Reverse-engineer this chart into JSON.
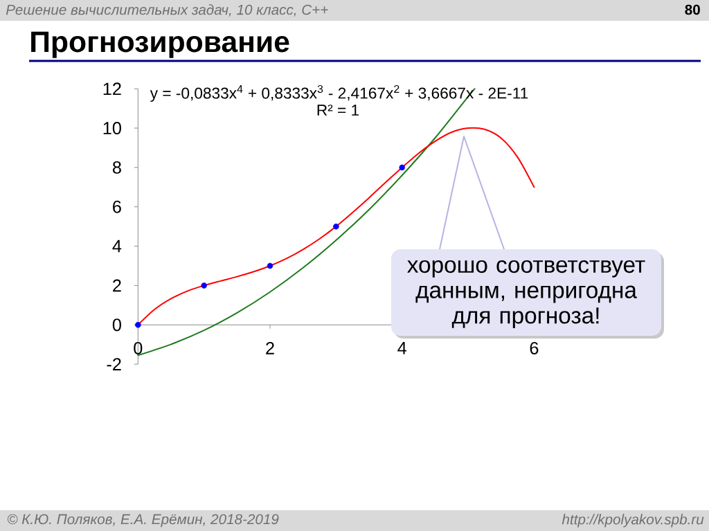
{
  "chart_data": {
    "type": "scatter",
    "title": "Прогнозирование",
    "annotations": [
      "Решение вычислительных задач, 10 класс, C++",
      "80",
      "y = -0,0833x$^{4}$ + 0,8333x$^{3}$ - 2,4167x$^{2}$ + 3,6667x - 2E-11",
      "R² = 1",
      "хорошо соответствует данным, непригодна для прогноза!",
      "© К.Ю. Поляков, Е.А. Ерёмин, 2018-2019",
      "http://kpolyakov.spb.ru"
    ],
    "xlim": [
      0,
      6
    ],
    "xticks": [
      0,
      2,
      4,
      6
    ],
    "ylim": [
      -2,
      12
    ],
    "yticks": [
      -2,
      0,
      2,
      4,
      6,
      8,
      10,
      12
    ],
    "series": [
      {
        "type": "line",
        "color": "#1e7a1e",
        "x": [
          0,
          0.5,
          1,
          1.5,
          2,
          2.5,
          3,
          3.5,
          4,
          4.5,
          5,
          5.1
        ],
        "values": [
          -1.55,
          -0.99,
          -0.28,
          0.61,
          1.67,
          2.9,
          4.3,
          5.86,
          7.6,
          9.5,
          11.6,
          12
        ]
      },
      {
        "type": "line",
        "color": "#ff0000",
        "x": [
          0,
          0.25,
          0.5,
          0.75,
          1,
          1.25,
          1.5,
          1.75,
          2,
          2.25,
          2.5,
          2.75,
          3,
          3.25,
          3.5,
          3.75,
          4,
          4.25,
          4.5,
          4.75,
          5,
          5.25,
          5.5,
          5.75,
          6
        ],
        "values": [
          0,
          0.78,
          1.33,
          1.72,
          2,
          2.23,
          2.45,
          2.7,
          3,
          3.37,
          3.83,
          4.37,
          5,
          5.71,
          6.46,
          7.24,
          8,
          8.72,
          9.33,
          9.79,
          10,
          9.94,
          9.49,
          8.52,
          7
        ]
      },
      {
        "color": "#0000ff",
        "marker": "circle",
        "x": [
          0,
          1,
          2,
          3,
          4
        ],
        "values": [
          0,
          2,
          3,
          5,
          8
        ]
      }
    ]
  }
}
